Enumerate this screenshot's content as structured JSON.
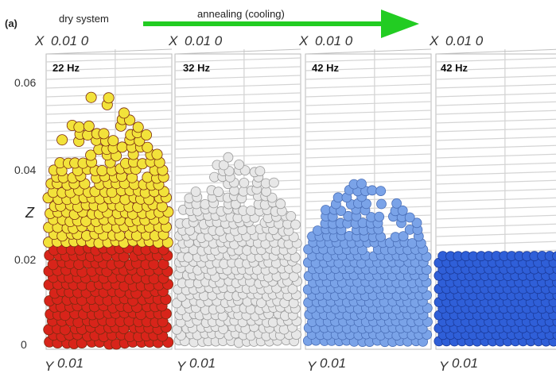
{
  "figure": {
    "panel_label": "(a)",
    "left_heading": "dry system",
    "arrow_heading": "annealing (cooling)",
    "arrow_color": "#22cc22",
    "z_axis_label": "Z",
    "z_ticks": [
      "0.06",
      "0.04",
      "0.02",
      "0"
    ]
  },
  "panels": [
    {
      "frequency": "22 Hz",
      "x_axis": {
        "letter": "X",
        "ticks": "0.01  0"
      },
      "y_axis": {
        "letter": "Y",
        "tick": "0.01"
      },
      "top_color": "#f2e23a",
      "bottom_color": "#d8241a",
      "packing": "loose-bilayer"
    },
    {
      "frequency": "32 Hz",
      "x_axis": {
        "letter": "X",
        "ticks": "0.01  0"
      },
      "y_axis": {
        "letter": "Y",
        "tick": "0.01"
      },
      "color": "#e7e7e7",
      "packing": "loose"
    },
    {
      "frequency": "42 Hz",
      "x_axis": {
        "letter": "X",
        "ticks": "0.01  0"
      },
      "y_axis": {
        "letter": "Y",
        "tick": "0.01"
      },
      "color": "#7aa3e8",
      "packing": "ordering"
    },
    {
      "frequency": "42 Hz",
      "x_axis": {
        "letter": "X",
        "ticks": "0.01  0"
      },
      "y_axis": {
        "letter": "Y",
        "tick": "0.01"
      },
      "color": "#2f5fd8",
      "packing": "crystal"
    }
  ]
}
